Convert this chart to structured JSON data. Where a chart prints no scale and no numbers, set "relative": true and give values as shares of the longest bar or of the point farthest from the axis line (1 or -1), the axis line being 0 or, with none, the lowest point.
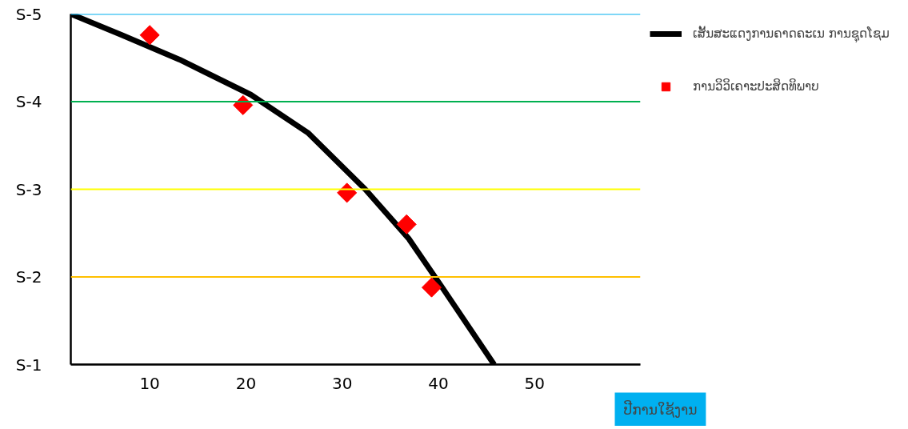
{
  "chart_data": {
    "type": "line",
    "xlabel": "ປີການໃຊ້ງານ",
    "xlim": [
      1.8,
      61
    ],
    "xticks": [
      10,
      20,
      30,
      40,
      50
    ],
    "relative": true,
    "series": [
      {
        "name": "ເສັ້ນສະແດງການຄາດຄະເນ ການຊຸດໂຊມ",
        "color": "#000000",
        "marker": "none",
        "x": [
          1.8,
          7.1,
          13.1,
          20.5,
          26.5,
          32.4,
          36.9,
          40.4,
          45.8
        ],
        "values": [
          1.0,
          0.94,
          0.87,
          0.77,
          0.66,
          0.5,
          0.36,
          0.22,
          0.0
        ]
      },
      {
        "name": "ການວິວິເຄາະປະສິດທິພາບ",
        "type": "scatter",
        "color": "#ff0000",
        "marker": "diamond",
        "x": [
          10.0,
          19.7,
          30.5,
          36.7,
          39.3
        ],
        "values": [
          0.94,
          0.74,
          0.49,
          0.4,
          0.22
        ]
      }
    ],
    "ref_lines": [
      {
        "axis": "y",
        "value": 1.0,
        "label": "S-5",
        "color": "#00b0f0"
      },
      {
        "axis": "y",
        "value": 0.75,
        "label": "S-4",
        "color": "#00b050"
      },
      {
        "axis": "y",
        "value": 0.5,
        "label": "S-3",
        "color": "#ffff00"
      },
      {
        "axis": "y",
        "value": 0.25,
        "label": "S-2",
        "color": "#ffc000"
      },
      {
        "axis": "y",
        "value": 0.0,
        "label": "S-1",
        "color": "#000000"
      }
    ],
    "grid": false,
    "legend": "top right"
  }
}
